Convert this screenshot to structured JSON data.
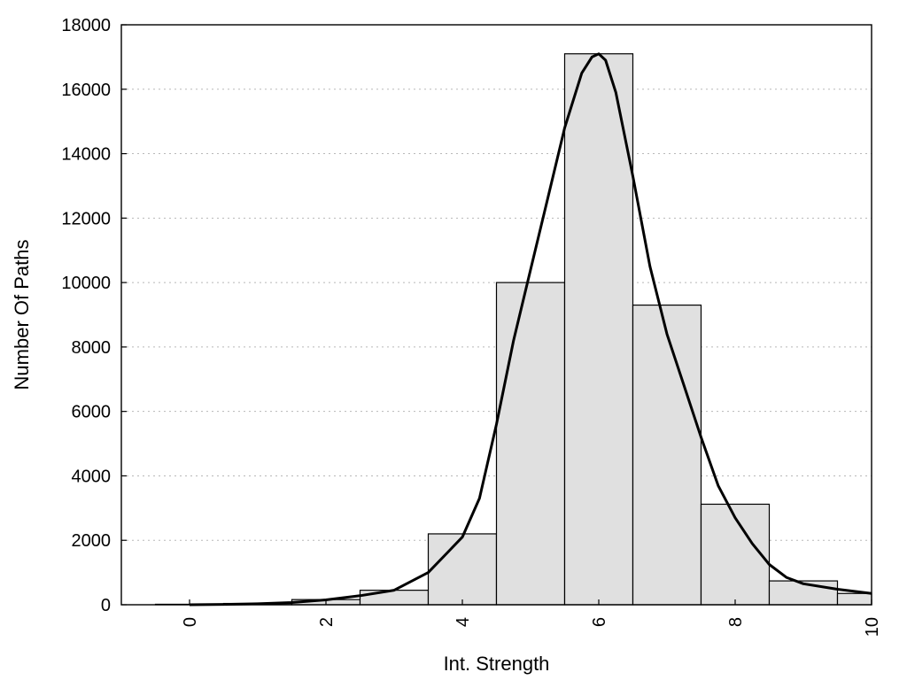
{
  "chart_data": {
    "type": "bar",
    "xlabel": "Int. Strength",
    "ylabel": "Number Of Paths",
    "xlim": [
      -1,
      10
    ],
    "ylim": [
      0,
      18000
    ],
    "x_ticks": [
      "0",
      "2",
      "4",
      "6",
      "8",
      "10"
    ],
    "y_ticks": [
      "0",
      "2000",
      "4000",
      "6000",
      "8000",
      "10000",
      "12000",
      "14000",
      "16000",
      "18000"
    ],
    "grid": "horizontal dotted",
    "bar_color": "#e0e0e0",
    "line_color": "#000000",
    "bars": [
      {
        "x": 0,
        "value": 15
      },
      {
        "x": 1,
        "value": 40
      },
      {
        "x": 2,
        "value": 160
      },
      {
        "x": 3,
        "value": 450
      },
      {
        "x": 4,
        "value": 2200
      },
      {
        "x": 5,
        "value": 10000
      },
      {
        "x": 6,
        "value": 17100
      },
      {
        "x": 7,
        "value": 9300
      },
      {
        "x": 8,
        "value": 3120
      },
      {
        "x": 9,
        "value": 740
      },
      {
        "x": 10,
        "value": 350
      }
    ],
    "series": [
      {
        "type": "line",
        "x": [
          0,
          0.5,
          1,
          1.5,
          2,
          2.5,
          3,
          3.5,
          4,
          4.25,
          4.5,
          4.75,
          5,
          5.25,
          5.5,
          5.75,
          5.9,
          6,
          6.1,
          6.25,
          6.5,
          6.75,
          7,
          7.25,
          7.5,
          7.75,
          8,
          8.25,
          8.5,
          8.75,
          9,
          9.5,
          10
        ],
        "y": [
          0,
          10,
          30,
          70,
          150,
          280,
          450,
          1000,
          2100,
          3300,
          5600,
          8200,
          10400,
          12600,
          14800,
          16500,
          17000,
          17100,
          16900,
          15900,
          13300,
          10500,
          8400,
          6800,
          5200,
          3700,
          2700,
          1900,
          1250,
          850,
          650,
          480,
          350
        ]
      }
    ]
  }
}
